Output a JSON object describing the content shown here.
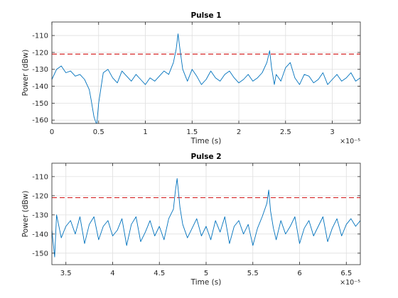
{
  "colors": {
    "signal": "#0072BD",
    "threshold": "#D62728",
    "grid": "#dfdfdf",
    "axis": "#262626",
    "background": "#ffffff"
  },
  "chart_data": [
    {
      "type": "line",
      "title": "Pulse 1",
      "xlabel": "Time (s)",
      "ylabel": "Power (dBw)",
      "x_exponent": "×10⁻⁵",
      "xlim": [
        0,
        3.3
      ],
      "ylim": [
        -162,
        -102
      ],
      "xticks": [
        0,
        0.5,
        1,
        1.5,
        2,
        2.5,
        3
      ],
      "xtick_labels": [
        "0",
        "0.5",
        "1",
        "1.5",
        "2",
        "2.5",
        "3"
      ],
      "yticks": [
        -160,
        -150,
        -140,
        -130,
        -120,
        -110
      ],
      "ytick_labels": [
        "-160",
        "-150",
        "-140",
        "-130",
        "-120",
        "-110"
      ],
      "grid": true,
      "threshold": -121,
      "series": [
        {
          "line_style": "solid",
          "x": [
            0,
            0.05,
            0.1,
            0.15,
            0.2,
            0.25,
            0.3,
            0.35,
            0.4,
            0.42,
            0.45,
            0.48,
            0.5,
            0.55,
            0.6,
            0.65,
            0.7,
            0.75,
            0.8,
            0.85,
            0.9,
            0.95,
            1.0,
            1.05,
            1.1,
            1.15,
            1.2,
            1.25,
            1.3,
            1.33,
            1.35,
            1.37,
            1.4,
            1.45,
            1.5,
            1.55,
            1.6,
            1.65,
            1.7,
            1.75,
            1.8,
            1.85,
            1.9,
            1.95,
            2.0,
            2.05,
            2.1,
            2.15,
            2.2,
            2.25,
            2.3,
            2.33,
            2.35,
            2.38,
            2.4,
            2.45,
            2.5,
            2.55,
            2.6,
            2.65,
            2.7,
            2.75,
            2.8,
            2.85,
            2.9,
            2.95,
            3.0,
            3.05,
            3.1,
            3.15,
            3.2,
            3.25,
            3.3
          ],
          "y": [
            -136,
            -130,
            -128,
            -132,
            -131,
            -134,
            -133,
            -136,
            -142,
            -148,
            -158,
            -163,
            -150,
            -132,
            -130,
            -135,
            -138,
            -131,
            -134,
            -137,
            -133,
            -136,
            -139,
            -135,
            -137,
            -134,
            -131,
            -133,
            -126,
            -118,
            -109,
            -118,
            -130,
            -137,
            -130,
            -134,
            -139,
            -136,
            -131,
            -135,
            -137,
            -133,
            -131,
            -135,
            -138,
            -136,
            -133,
            -137,
            -135,
            -132,
            -126,
            -119,
            -129,
            -139,
            -133,
            -137,
            -129,
            -126,
            -135,
            -139,
            -133,
            -134,
            -138,
            -136,
            -132,
            -139,
            -136,
            -133,
            -137,
            -135,
            -132,
            -137,
            -135
          ]
        }
      ]
    },
    {
      "type": "line",
      "title": "Pulse 2",
      "xlabel": "Time (s)",
      "ylabel": "Power (dBw)",
      "x_exponent": "×10⁻⁵",
      "xlim": [
        3.35,
        6.65
      ],
      "ylim": [
        -156,
        -103
      ],
      "xticks": [
        3.5,
        4,
        4.5,
        5,
        5.5,
        6,
        6.5
      ],
      "xtick_labels": [
        "3.5",
        "4",
        "4.5",
        "5",
        "5.5",
        "6",
        "6.5"
      ],
      "yticks": [
        -150,
        -140,
        -130,
        -120,
        -110
      ],
      "ytick_labels": [
        "-150",
        "-140",
        "-130",
        "-120",
        "-110"
      ],
      "grid": true,
      "threshold": -121,
      "series": [
        {
          "line_style": "solid",
          "x": [
            3.35,
            3.38,
            3.4,
            3.45,
            3.5,
            3.55,
            3.6,
            3.65,
            3.7,
            3.75,
            3.8,
            3.85,
            3.9,
            3.95,
            4.0,
            4.05,
            4.1,
            4.15,
            4.2,
            4.25,
            4.3,
            4.35,
            4.4,
            4.45,
            4.5,
            4.55,
            4.6,
            4.65,
            4.67,
            4.69,
            4.72,
            4.75,
            4.8,
            4.85,
            4.9,
            4.95,
            5.0,
            5.05,
            5.1,
            5.15,
            5.2,
            5.25,
            5.3,
            5.35,
            5.4,
            5.45,
            5.5,
            5.55,
            5.6,
            5.65,
            5.67,
            5.69,
            5.72,
            5.75,
            5.8,
            5.85,
            5.9,
            5.95,
            6.0,
            6.05,
            6.1,
            6.15,
            6.2,
            6.25,
            6.3,
            6.35,
            6.4,
            6.45,
            6.5,
            6.55,
            6.6,
            6.65
          ],
          "y": [
            -138,
            -152,
            -130,
            -142,
            -136,
            -133,
            -140,
            -131,
            -145,
            -135,
            -131,
            -143,
            -136,
            -133,
            -141,
            -138,
            -132,
            -146,
            -135,
            -131,
            -144,
            -139,
            -133,
            -141,
            -136,
            -143,
            -132,
            -127,
            -118,
            -111,
            -126,
            -135,
            -142,
            -137,
            -132,
            -141,
            -136,
            -143,
            -133,
            -139,
            -131,
            -145,
            -136,
            -133,
            -140,
            -135,
            -146,
            -137,
            -131,
            -124,
            -117,
            -128,
            -137,
            -143,
            -133,
            -140,
            -136,
            -131,
            -145,
            -137,
            -133,
            -141,
            -136,
            -131,
            -144,
            -137,
            -132,
            -141,
            -135,
            -132,
            -136,
            -133
          ]
        }
      ]
    }
  ]
}
